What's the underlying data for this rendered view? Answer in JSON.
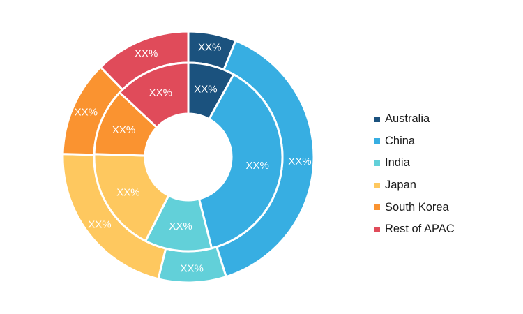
{
  "chart_data": {
    "type": "donut",
    "rings": [
      "outer",
      "inner"
    ],
    "categories": [
      "Australia",
      "China",
      "India",
      "Japan",
      "South Korea",
      "Rest of APAC"
    ],
    "colors": [
      "#1b527e",
      "#37aee2",
      "#62d0d9",
      "#fec85f",
      "#fa9330",
      "#e04b5a"
    ],
    "series": [
      {
        "values": [
          6,
          38,
          8.5,
          21,
          12,
          12
        ],
        "labels": [
          "XX%",
          "XX%",
          "XX%",
          "XX%",
          "XX%",
          "XX%"
        ]
      },
      {
        "values": [
          8,
          38,
          11.5,
          18,
          11.5,
          13
        ],
        "labels": [
          "XX%",
          "XX%",
          "XX%",
          "XX%",
          "XX%",
          "XX%"
        ]
      }
    ],
    "legend_position": "right",
    "start_angle_deg": 0,
    "direction": "clockwise"
  }
}
